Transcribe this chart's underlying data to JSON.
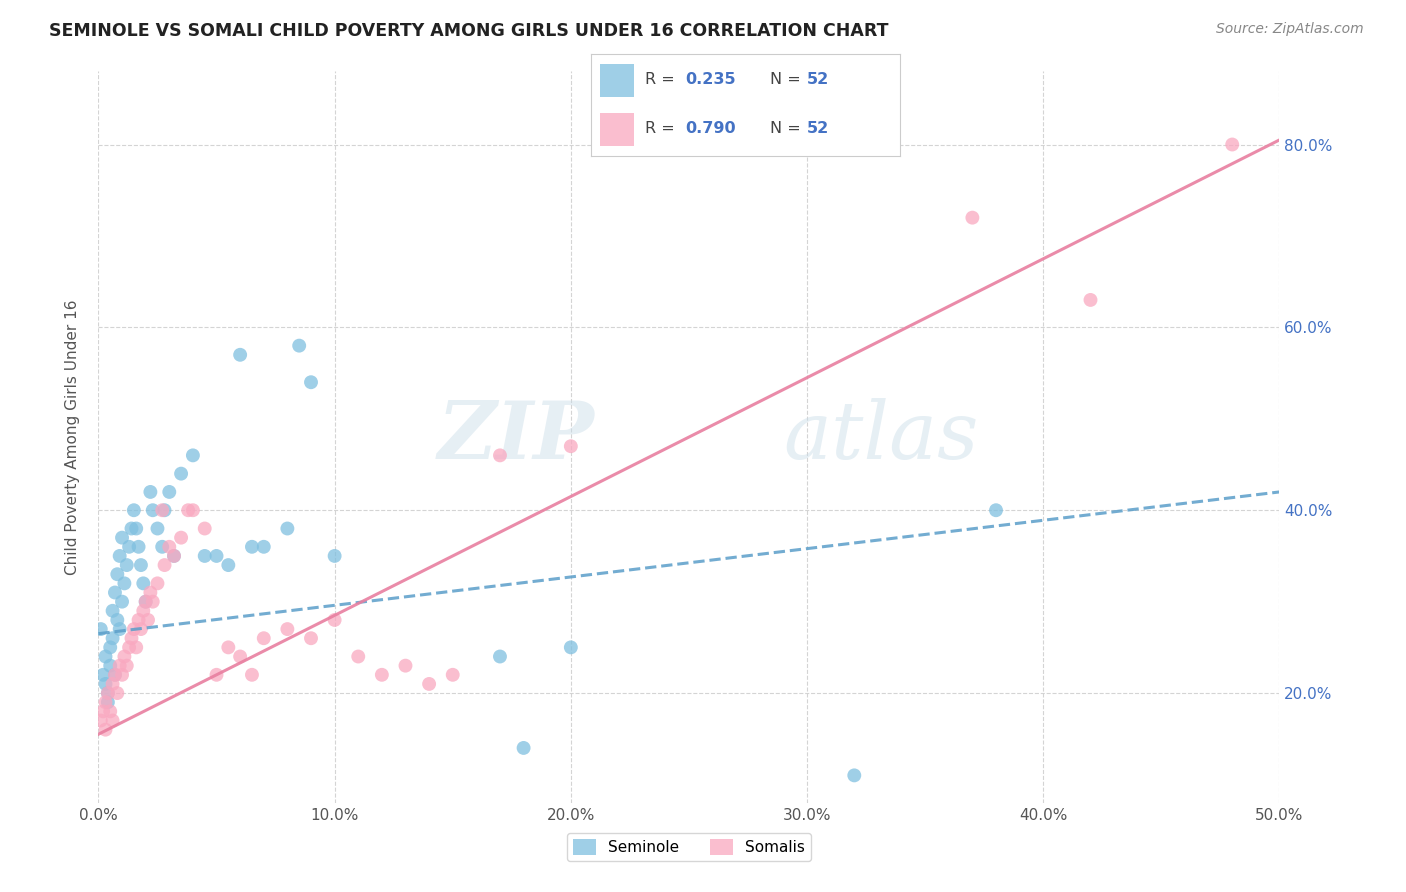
{
  "title": "SEMINOLE VS SOMALI CHILD POVERTY AMONG GIRLS UNDER 16 CORRELATION CHART",
  "source": "Source: ZipAtlas.com",
  "ylabel": "Child Poverty Among Girls Under 16",
  "xlim": [
    0.0,
    0.5
  ],
  "ylim": [
    0.08,
    0.88
  ],
  "xtick_labels": [
    "0.0%",
    "10.0%",
    "20.0%",
    "30.0%",
    "40.0%",
    "50.0%"
  ],
  "xtick_vals": [
    0.0,
    0.1,
    0.2,
    0.3,
    0.4,
    0.5
  ],
  "ytick_labels": [
    "20.0%",
    "40.0%",
    "60.0%",
    "80.0%"
  ],
  "ytick_vals": [
    0.2,
    0.4,
    0.6,
    0.8
  ],
  "seminole_color": "#7fbfdf",
  "somali_color": "#f9a8c0",
  "trendline_seminole_color": "#5b9ec9",
  "trendline_somali_color": "#e87fa0",
  "watermark_color": "#d0e8f0",
  "seminole_scatter": [
    [
      0.001,
      0.27
    ],
    [
      0.002,
      0.22
    ],
    [
      0.003,
      0.24
    ],
    [
      0.003,
      0.21
    ],
    [
      0.004,
      0.2
    ],
    [
      0.004,
      0.19
    ],
    [
      0.005,
      0.25
    ],
    [
      0.005,
      0.23
    ],
    [
      0.006,
      0.29
    ],
    [
      0.006,
      0.26
    ],
    [
      0.007,
      0.31
    ],
    [
      0.007,
      0.22
    ],
    [
      0.008,
      0.33
    ],
    [
      0.008,
      0.28
    ],
    [
      0.009,
      0.35
    ],
    [
      0.009,
      0.27
    ],
    [
      0.01,
      0.37
    ],
    [
      0.01,
      0.3
    ],
    [
      0.011,
      0.32
    ],
    [
      0.012,
      0.34
    ],
    [
      0.013,
      0.36
    ],
    [
      0.014,
      0.38
    ],
    [
      0.015,
      0.4
    ],
    [
      0.016,
      0.38
    ],
    [
      0.017,
      0.36
    ],
    [
      0.018,
      0.34
    ],
    [
      0.019,
      0.32
    ],
    [
      0.02,
      0.3
    ],
    [
      0.022,
      0.42
    ],
    [
      0.023,
      0.4
    ],
    [
      0.025,
      0.38
    ],
    [
      0.027,
      0.36
    ],
    [
      0.028,
      0.4
    ],
    [
      0.03,
      0.42
    ],
    [
      0.032,
      0.35
    ],
    [
      0.035,
      0.44
    ],
    [
      0.04,
      0.46
    ],
    [
      0.045,
      0.35
    ],
    [
      0.05,
      0.35
    ],
    [
      0.055,
      0.34
    ],
    [
      0.06,
      0.57
    ],
    [
      0.065,
      0.36
    ],
    [
      0.07,
      0.36
    ],
    [
      0.08,
      0.38
    ],
    [
      0.085,
      0.58
    ],
    [
      0.09,
      0.54
    ],
    [
      0.1,
      0.35
    ],
    [
      0.17,
      0.24
    ],
    [
      0.18,
      0.14
    ],
    [
      0.2,
      0.25
    ],
    [
      0.32,
      0.11
    ],
    [
      0.38,
      0.4
    ]
  ],
  "somali_scatter": [
    [
      0.001,
      0.17
    ],
    [
      0.002,
      0.18
    ],
    [
      0.003,
      0.19
    ],
    [
      0.003,
      0.16
    ],
    [
      0.004,
      0.2
    ],
    [
      0.005,
      0.18
    ],
    [
      0.006,
      0.21
    ],
    [
      0.006,
      0.17
    ],
    [
      0.007,
      0.22
    ],
    [
      0.008,
      0.2
    ],
    [
      0.009,
      0.23
    ],
    [
      0.01,
      0.22
    ],
    [
      0.011,
      0.24
    ],
    [
      0.012,
      0.23
    ],
    [
      0.013,
      0.25
    ],
    [
      0.014,
      0.26
    ],
    [
      0.015,
      0.27
    ],
    [
      0.016,
      0.25
    ],
    [
      0.017,
      0.28
    ],
    [
      0.018,
      0.27
    ],
    [
      0.019,
      0.29
    ],
    [
      0.02,
      0.3
    ],
    [
      0.021,
      0.28
    ],
    [
      0.022,
      0.31
    ],
    [
      0.023,
      0.3
    ],
    [
      0.025,
      0.32
    ],
    [
      0.027,
      0.4
    ],
    [
      0.028,
      0.34
    ],
    [
      0.03,
      0.36
    ],
    [
      0.032,
      0.35
    ],
    [
      0.035,
      0.37
    ],
    [
      0.038,
      0.4
    ],
    [
      0.04,
      0.4
    ],
    [
      0.045,
      0.38
    ],
    [
      0.05,
      0.22
    ],
    [
      0.055,
      0.25
    ],
    [
      0.06,
      0.24
    ],
    [
      0.065,
      0.22
    ],
    [
      0.07,
      0.26
    ],
    [
      0.08,
      0.27
    ],
    [
      0.09,
      0.26
    ],
    [
      0.1,
      0.28
    ],
    [
      0.11,
      0.24
    ],
    [
      0.12,
      0.22
    ],
    [
      0.13,
      0.23
    ],
    [
      0.14,
      0.21
    ],
    [
      0.15,
      0.22
    ],
    [
      0.17,
      0.46
    ],
    [
      0.2,
      0.47
    ],
    [
      0.37,
      0.72
    ],
    [
      0.42,
      0.63
    ],
    [
      0.48,
      0.8
    ]
  ],
  "sem_trend_x": [
    0.0,
    0.5
  ],
  "sem_trend_y": [
    0.265,
    0.42
  ],
  "som_trend_x": [
    0.0,
    0.5
  ],
  "som_trend_y": [
    0.155,
    0.805
  ]
}
